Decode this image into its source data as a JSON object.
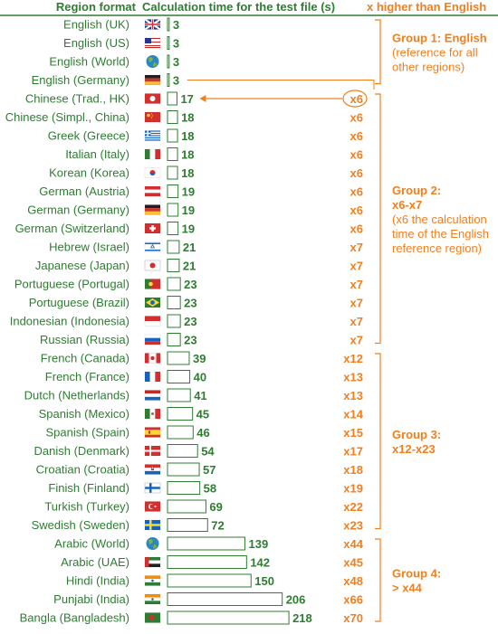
{
  "headers": {
    "region": "Region format",
    "calc": "Calculation time for the test file (s)",
    "factor": "x higher than English"
  },
  "colors": {
    "green": "#2e7d32",
    "orange": "#f07f1e",
    "bar_stroke": "#2e7d32",
    "bar_fill": "#ffffff"
  },
  "chart_data": {
    "type": "bar",
    "orientation": "horizontal",
    "categories": [
      "English (UK)",
      "English (US)",
      "English (World)",
      "English (Germany)",
      "Chinese (Trad., HK)",
      "Chinese (Simpl., China)",
      "Greek (Greece)",
      "Italian (Italy)",
      "Korean (Korea)",
      "German (Austria)",
      "German (Germany)",
      "German (Switzerland)",
      "Hebrew (Israel)",
      "Japanese (Japan)",
      "Portuguese (Portugal)",
      "Portuguese (Brazil)",
      "Indonesian (Indonesia)",
      "Russian (Russia)",
      "French (Canada)",
      "French (France)",
      "Dutch (Netherlands)",
      "Spanish (Mexico)",
      "Spanish (Spain)",
      "Danish (Denmark)",
      "Croatian (Croatia)",
      "Finish (Finland)",
      "Turkish (Turkey)",
      "Swedish (Sweden)",
      "Arabic (World)",
      "Arabic (UAE)",
      "Hindi (India)",
      "Punjabi (India)",
      "Bangla (Bangladesh)"
    ],
    "values": [
      3,
      3,
      3,
      3,
      17,
      18,
      18,
      18,
      18,
      19,
      19,
      19,
      21,
      21,
      23,
      23,
      23,
      23,
      39,
      40,
      41,
      45,
      46,
      54,
      57,
      58,
      69,
      72,
      139,
      142,
      150,
      206,
      218
    ],
    "factors": [
      "",
      "",
      "",
      "",
      "x6",
      "x6",
      "x6",
      "x6",
      "x6",
      "x6",
      "x6",
      "x6",
      "x7",
      "x7",
      "x7",
      "x7",
      "x7",
      "x7",
      "x12",
      "x13",
      "x13",
      "x14",
      "x15",
      "x17",
      "x18",
      "x19",
      "x22",
      "x23",
      "x44",
      "x45",
      "x48",
      "x66",
      "x70"
    ],
    "flags": [
      "flag-uk",
      "flag-us",
      "globe",
      "flag-germany",
      "flag-hong-kong",
      "flag-china",
      "flag-greece",
      "flag-italy",
      "flag-korea",
      "flag-austria",
      "flag-germany",
      "flag-switzerland",
      "flag-israel",
      "flag-japan",
      "flag-portugal",
      "flag-brazil",
      "flag-indonesia",
      "flag-russia",
      "flag-canada",
      "flag-france",
      "flag-netherlands",
      "flag-mexico",
      "flag-spain",
      "flag-denmark",
      "flag-croatia",
      "flag-finland",
      "flag-turkey",
      "flag-sweden",
      "globe",
      "flag-uae",
      "flag-india",
      "flag-india",
      "flag-bangladesh"
    ],
    "xlim": [
      0,
      218
    ],
    "groups": [
      {
        "start": 0,
        "end": 3,
        "lines": [
          "Group 1: English",
          "(reference for all",
          "other regions)"
        ]
      },
      {
        "start": 4,
        "end": 17,
        "lines": [
          "Group 2:",
          "x6-x7",
          "(x6 the calculation",
          "time of the English",
          "reference region)"
        ]
      },
      {
        "start": 18,
        "end": 27,
        "lines": [
          "Group 3:",
          "x12-x23"
        ]
      },
      {
        "start": 28,
        "end": 32,
        "lines": [
          "Group 4:",
          "> x44"
        ]
      }
    ],
    "annotation": {
      "from_row": 3,
      "to_row": 4,
      "label": "x6"
    }
  }
}
